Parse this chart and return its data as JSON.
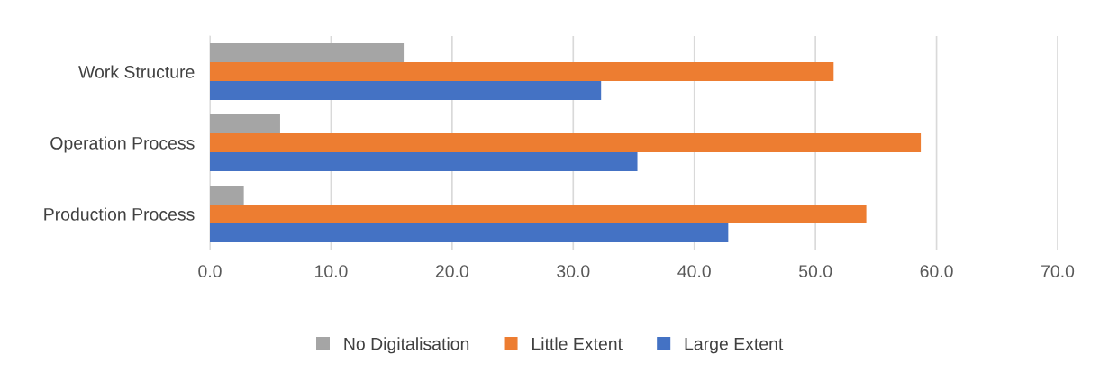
{
  "chart_data": {
    "type": "bar",
    "orientation": "horizontal",
    "categories": [
      "Work Structure",
      "Operation Process",
      "Production Process"
    ],
    "series": [
      {
        "name": "No Digitalisation",
        "color": "#a5a5a5",
        "values": [
          16.0,
          5.8,
          2.8
        ]
      },
      {
        "name": "Little Extent",
        "color": "#ed7d31",
        "values": [
          51.5,
          58.7,
          54.2
        ]
      },
      {
        "name": "Large Extent",
        "color": "#4472c4",
        "values": [
          32.3,
          35.3,
          42.8
        ]
      }
    ],
    "xlim": [
      0,
      70
    ],
    "xticks": [
      {
        "value": 0,
        "label": "0.0"
      },
      {
        "value": 10,
        "label": "10.0"
      },
      {
        "value": 20,
        "label": "20.0"
      },
      {
        "value": 30,
        "label": "30.0"
      },
      {
        "value": 40,
        "label": "40.0"
      },
      {
        "value": 50,
        "label": "50.0"
      },
      {
        "value": 60,
        "label": "60.0"
      },
      {
        "value": 70,
        "label": "70.0"
      }
    ],
    "grid": "x",
    "legend": "bottom"
  }
}
